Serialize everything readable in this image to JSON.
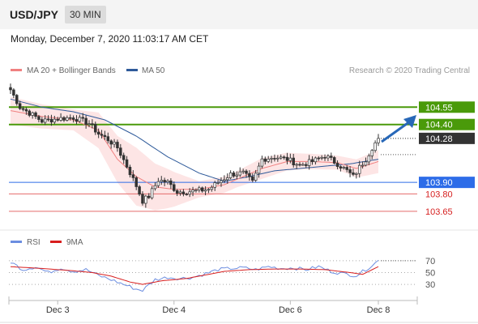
{
  "header": {
    "pair": "USD/JPY",
    "timeframe": "30 MIN"
  },
  "timestamp": "Monday, December 7, 2020 11:03:17 AM CET",
  "colors": {
    "ma20": "#f08080",
    "ma50": "#2e5a9a",
    "bands": "#fde0e0",
    "resistance": "#4a9a0a",
    "pivot": "#2d6ce8",
    "support": "#e46a6a",
    "last": "#333333",
    "rsi": "#6b8de0",
    "rsi_ma": "#d81e1e"
  },
  "chart_data": [
    {
      "type": "candlestick",
      "legend": [
        {
          "name": "MA 20 + Bollinger Bands",
          "color": "#f08080"
        },
        {
          "name": "MA 50",
          "color": "#2e5a9a"
        }
      ],
      "attribution": "Research © 2020 Trading Central",
      "x_ticks": [
        "Dec 3",
        "Dec 4",
        "Dec 6",
        "Dec 8"
      ],
      "x_tick_index": [
        15,
        52,
        89,
        117
      ],
      "ylim": [
        103.53,
        104.79
      ],
      "last_price": 104.28,
      "levels": [
        {
          "label": "104.55",
          "value": 104.55,
          "kind": "resistance"
        },
        {
          "label": "104.40",
          "value": 104.4,
          "kind": "resistance"
        },
        {
          "label": "104.28",
          "value": 104.28,
          "kind": "last"
        },
        {
          "label": "103.90",
          "value": 103.9,
          "kind": "pivot"
        },
        {
          "label": "103.80",
          "value": 103.8,
          "kind": "support"
        },
        {
          "label": "103.65",
          "value": 103.65,
          "kind": "support"
        }
      ],
      "close_anchors": [
        [
          0,
          104.7
        ],
        [
          3,
          104.55
        ],
        [
          6,
          104.5
        ],
        [
          10,
          104.43
        ],
        [
          15,
          104.45
        ],
        [
          20,
          104.46
        ],
        [
          25,
          104.41
        ],
        [
          28,
          104.32
        ],
        [
          31,
          104.27
        ],
        [
          34,
          104.2
        ],
        [
          37,
          104.04
        ],
        [
          40,
          103.87
        ],
        [
          42,
          103.74
        ],
        [
          44,
          103.78
        ],
        [
          47,
          103.92
        ],
        [
          50,
          103.9
        ],
        [
          53,
          103.82
        ],
        [
          56,
          103.82
        ],
        [
          60,
          103.83
        ],
        [
          63,
          103.84
        ],
        [
          66,
          103.9
        ],
        [
          70,
          103.97
        ],
        [
          74,
          103.98
        ],
        [
          77,
          103.9
        ],
        [
          80,
          104.1
        ],
        [
          84,
          104.12
        ],
        [
          88,
          104.1
        ],
        [
          92,
          104.05
        ],
        [
          96,
          104.08
        ],
        [
          100,
          104.13
        ],
        [
          104,
          104.06
        ],
        [
          107,
          104.0
        ],
        [
          109,
          103.95
        ],
        [
          111,
          104.03
        ],
        [
          113,
          104.1
        ],
        [
          115,
          104.2
        ],
        [
          117,
          104.28
        ]
      ],
      "ma20_anchors": [
        [
          0,
          104.52
        ],
        [
          10,
          104.47
        ],
        [
          20,
          104.44
        ],
        [
          28,
          104.35
        ],
        [
          34,
          104.1
        ],
        [
          40,
          103.95
        ],
        [
          46,
          103.86
        ],
        [
          52,
          103.84
        ],
        [
          60,
          103.84
        ],
        [
          68,
          103.88
        ],
        [
          74,
          103.95
        ],
        [
          80,
          104.02
        ],
        [
          88,
          104.08
        ],
        [
          96,
          104.08
        ],
        [
          104,
          104.07
        ],
        [
          110,
          104.02
        ],
        [
          117,
          104.08
        ]
      ],
      "ma50_anchors": [
        [
          0,
          104.62
        ],
        [
          10,
          104.55
        ],
        [
          20,
          104.51
        ],
        [
          30,
          104.44
        ],
        [
          40,
          104.3
        ],
        [
          50,
          104.12
        ],
        [
          60,
          103.98
        ],
        [
          68,
          103.91
        ],
        [
          76,
          103.95
        ],
        [
          84,
          104.0
        ],
        [
          92,
          104.02
        ],
        [
          100,
          104.04
        ],
        [
          108,
          104.06
        ],
        [
          117,
          104.1
        ]
      ],
      "band_width_anchors": [
        [
          0,
          0.12
        ],
        [
          20,
          0.09
        ],
        [
          30,
          0.17
        ],
        [
          40,
          0.25
        ],
        [
          50,
          0.17
        ],
        [
          60,
          0.07
        ],
        [
          72,
          0.07
        ],
        [
          80,
          0.09
        ],
        [
          92,
          0.07
        ],
        [
          104,
          0.06
        ],
        [
          117,
          0.1
        ]
      ]
    },
    {
      "type": "line",
      "legend": [
        {
          "name": "RSI",
          "color": "#6b8de0"
        },
        {
          "name": "9MA",
          "color": "#d81e1e"
        }
      ],
      "ylim": [
        15,
        85
      ],
      "y_ticks": [
        30,
        50,
        70
      ],
      "rsi_anchors": [
        [
          0,
          68
        ],
        [
          4,
          55
        ],
        [
          8,
          60
        ],
        [
          12,
          50
        ],
        [
          16,
          58
        ],
        [
          20,
          52
        ],
        [
          24,
          55
        ],
        [
          28,
          45
        ],
        [
          32,
          38
        ],
        [
          36,
          30
        ],
        [
          40,
          22
        ],
        [
          42,
          20
        ],
        [
          46,
          38
        ],
        [
          50,
          42
        ],
        [
          54,
          40
        ],
        [
          58,
          42
        ],
        [
          62,
          48
        ],
        [
          66,
          55
        ],
        [
          70,
          57
        ],
        [
          74,
          58
        ],
        [
          78,
          55
        ],
        [
          82,
          60
        ],
        [
          86,
          57
        ],
        [
          90,
          58
        ],
        [
          94,
          55
        ],
        [
          98,
          60
        ],
        [
          102,
          52
        ],
        [
          106,
          48
        ],
        [
          110,
          45
        ],
        [
          113,
          55
        ],
        [
          117,
          70
        ]
      ],
      "rsi_ma_anchors": [
        [
          0,
          60
        ],
        [
          10,
          57
        ],
        [
          20,
          53
        ],
        [
          26,
          50
        ],
        [
          32,
          44
        ],
        [
          38,
          34
        ],
        [
          42,
          30
        ],
        [
          48,
          36
        ],
        [
          56,
          40
        ],
        [
          62,
          46
        ],
        [
          68,
          52
        ],
        [
          76,
          55
        ],
        [
          84,
          56
        ],
        [
          92,
          56
        ],
        [
          100,
          55
        ],
        [
          108,
          50
        ],
        [
          112,
          47
        ],
        [
          117,
          60
        ]
      ]
    }
  ]
}
